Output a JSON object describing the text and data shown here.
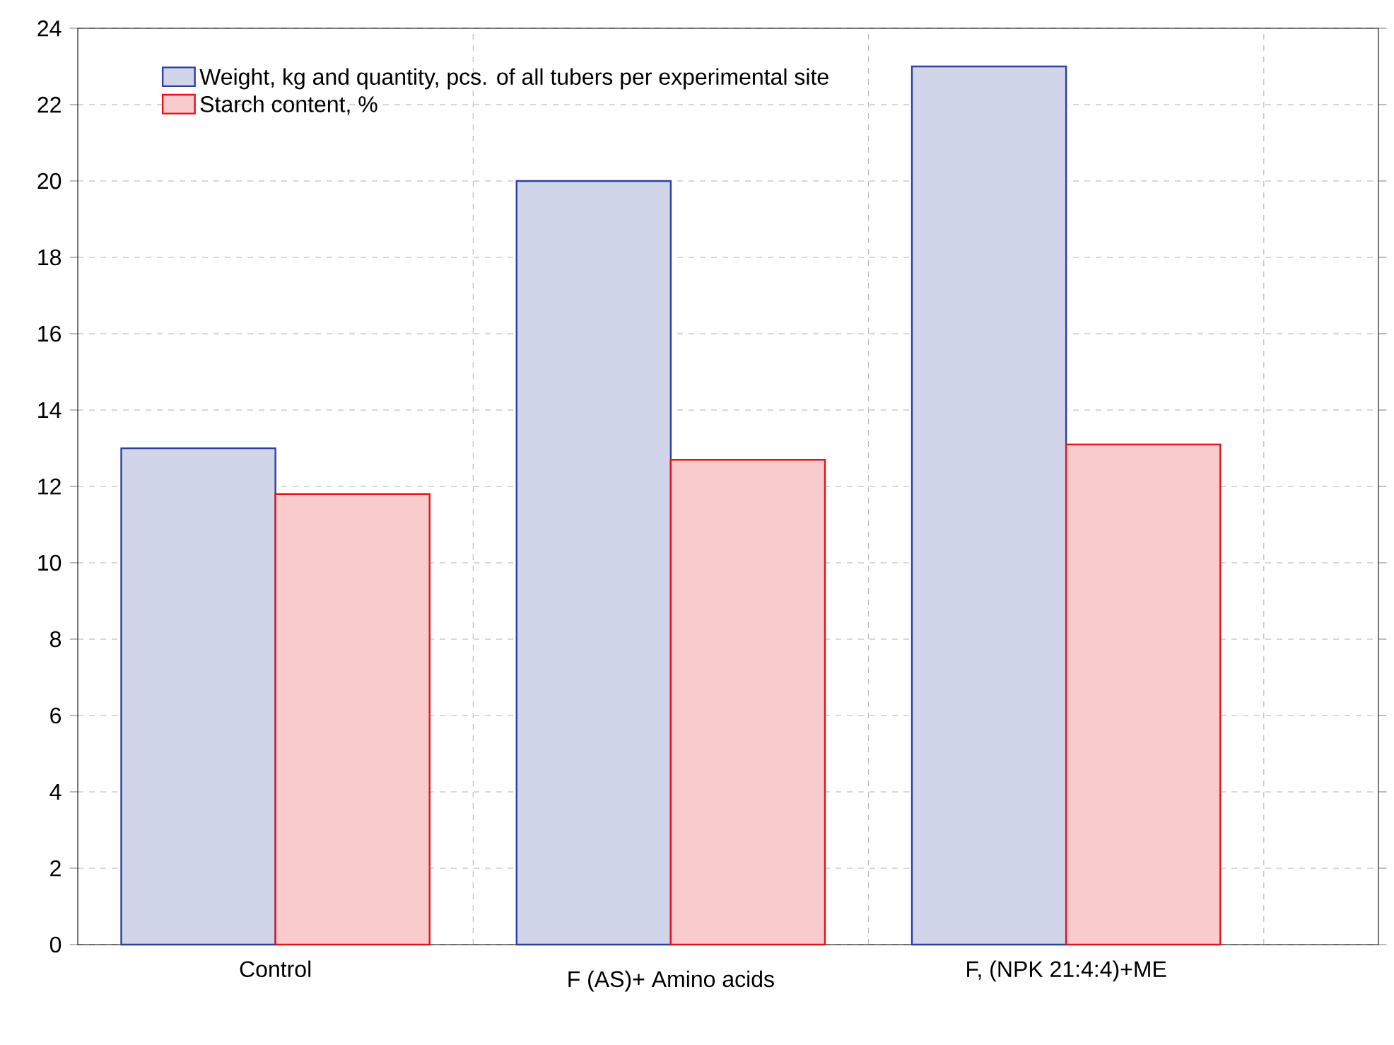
{
  "chart_data": {
    "type": "bar",
    "categories": [
      "Control",
      "F (AS)+ Amino acids",
      "F, (NPK 21:4:4)+ME"
    ],
    "series": [
      {
        "name": "Weight, kg and quantity, pcs. of all tubers per experimental site",
        "color": "#2e3f9e",
        "values": [
          13,
          20,
          23
        ]
      },
      {
        "name": "Starch content, %",
        "color": "#e3131b",
        "values": [
          11.8,
          12.7,
          13.1
        ]
      }
    ],
    "ylim": [
      0,
      24
    ],
    "yticks": [
      0,
      2,
      4,
      6,
      8,
      10,
      12,
      14,
      16,
      18,
      20,
      22,
      24
    ],
    "grid": true,
    "legend": "top"
  }
}
